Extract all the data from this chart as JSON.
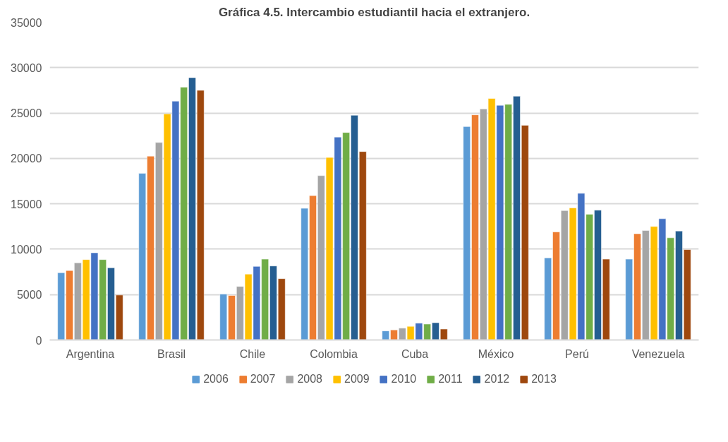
{
  "chart_data": {
    "type": "bar",
    "title": "Gráfica 4.5. Intercambio estudiantil hacia el extranjero.",
    "categories": [
      "Argentina",
      "Brasil",
      "Chile",
      "Colombia",
      "Cuba",
      "México",
      "Perú",
      "Venezuela"
    ],
    "series": [
      {
        "name": "2006",
        "color": "#5b9bd5",
        "values": [
          7400,
          18350,
          5050,
          14500,
          1000,
          23500,
          9050,
          8900
        ]
      },
      {
        "name": "2007",
        "color": "#ed7d31",
        "values": [
          7650,
          20250,
          4900,
          15900,
          1100,
          24800,
          11900,
          11700
        ]
      },
      {
        "name": "2008",
        "color": "#a5a5a5",
        "values": [
          8500,
          21750,
          5900,
          18100,
          1300,
          25450,
          14250,
          12050
        ]
      },
      {
        "name": "2009",
        "color": "#ffc000",
        "values": [
          8850,
          24900,
          7250,
          20100,
          1500,
          26600,
          14550,
          12500
        ]
      },
      {
        "name": "2010",
        "color": "#4472c4",
        "values": [
          9600,
          26300,
          8100,
          22350,
          1850,
          25850,
          16150,
          13350
        ]
      },
      {
        "name": "2011",
        "color": "#70ad47",
        "values": [
          8850,
          27850,
          8900,
          22850,
          1750,
          25950,
          13850,
          11250
        ]
      },
      {
        "name": "2012",
        "color": "#255e91",
        "values": [
          7950,
          28900,
          8150,
          24750,
          1900,
          26850,
          14300,
          12000
        ]
      },
      {
        "name": "2013",
        "color": "#9e480e",
        "values": [
          4950,
          27500,
          6750,
          20750,
          1200,
          23650,
          8900,
          9950
        ]
      }
    ],
    "ylim": [
      0,
      35000
    ],
    "yticks": [
      0,
      5000,
      10000,
      15000,
      20000,
      25000,
      30000,
      35000
    ],
    "grid": "y",
    "legend": "bottom"
  }
}
